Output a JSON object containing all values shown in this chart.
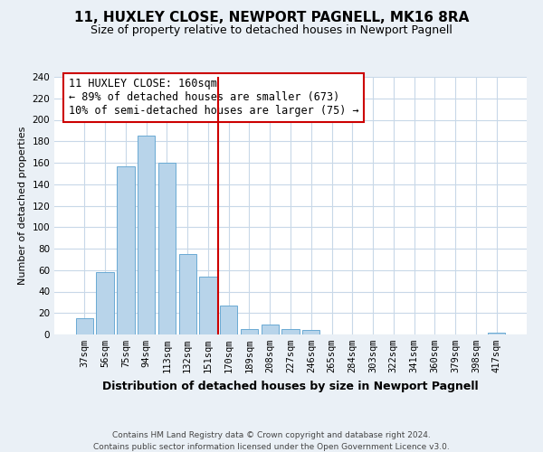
{
  "title": "11, HUXLEY CLOSE, NEWPORT PAGNELL, MK16 8RA",
  "subtitle": "Size of property relative to detached houses in Newport Pagnell",
  "xlabel": "Distribution of detached houses by size in Newport Pagnell",
  "ylabel": "Number of detached properties",
  "bar_labels": [
    "37sqm",
    "56sqm",
    "75sqm",
    "94sqm",
    "113sqm",
    "132sqm",
    "151sqm",
    "170sqm",
    "189sqm",
    "208sqm",
    "227sqm",
    "246sqm",
    "265sqm",
    "284sqm",
    "303sqm",
    "322sqm",
    "341sqm",
    "360sqm",
    "379sqm",
    "398sqm",
    "417sqm"
  ],
  "bar_heights": [
    15,
    58,
    157,
    185,
    160,
    75,
    54,
    27,
    5,
    9,
    5,
    4,
    0,
    0,
    0,
    0,
    0,
    0,
    0,
    0,
    2
  ],
  "bar_color": "#b8d4ea",
  "bar_edge_color": "#6aaad4",
  "vline_color": "#cc0000",
  "ylim": [
    0,
    240
  ],
  "yticks": [
    0,
    20,
    40,
    60,
    80,
    100,
    120,
    140,
    160,
    180,
    200,
    220,
    240
  ],
  "annotation_title": "11 HUXLEY CLOSE: 160sqm",
  "annotation_line1": "← 89% of detached houses are smaller (673)",
  "annotation_line2": "10% of semi-detached houses are larger (75) →",
  "annotation_box_color": "#ffffff",
  "annotation_box_edgecolor": "#cc0000",
  "footer1": "Contains HM Land Registry data © Crown copyright and database right 2024.",
  "footer2": "Contains public sector information licensed under the Open Government Licence v3.0.",
  "bg_color": "#eaf0f6",
  "plot_bg_color": "#ffffff",
  "grid_color": "#c8d8e8",
  "title_fontsize": 11,
  "subtitle_fontsize": 9,
  "ylabel_fontsize": 8,
  "xlabel_fontsize": 9,
  "tick_fontsize": 7.5,
  "ann_fontsize": 8.5
}
